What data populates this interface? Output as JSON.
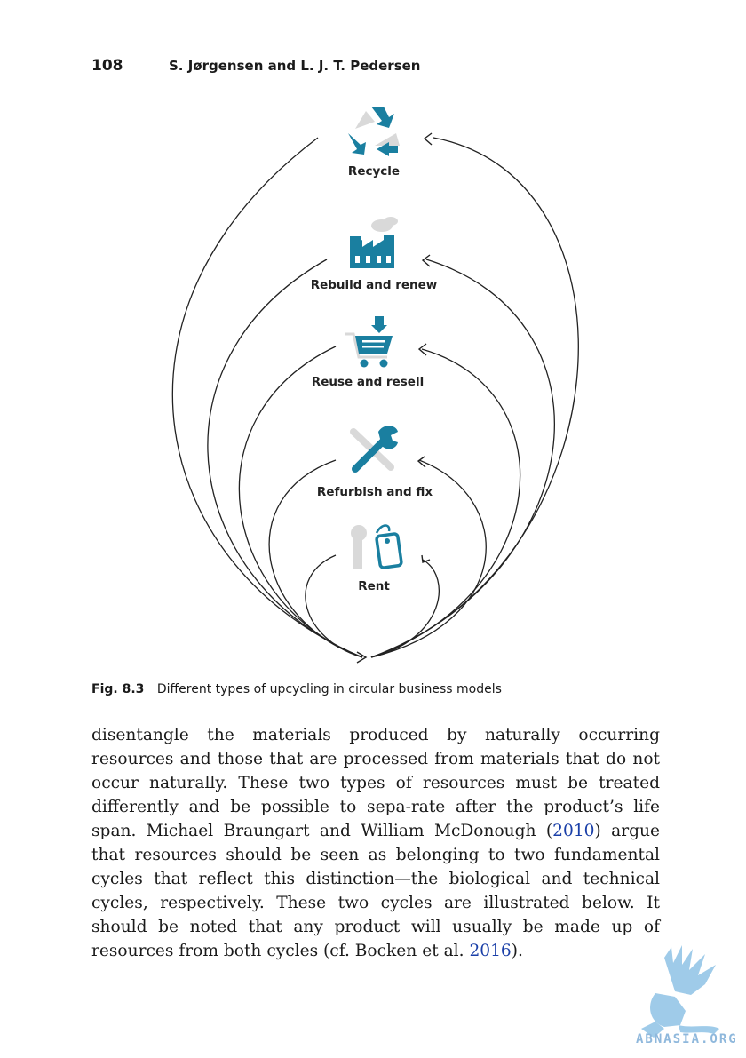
{
  "header": {
    "page_number": "108",
    "authors": "S. Jørgensen and L. J. T. Pedersen"
  },
  "figure": {
    "labels": {
      "recycle": "Recycle",
      "rebuild": "Rebuild and renew",
      "reuse": "Reuse and resell",
      "refurbish": "Refurbish and fix",
      "rent": "Rent"
    },
    "icons": {
      "recycle": "recycle-arrows-icon",
      "rebuild": "factory-icon",
      "reuse": "shopping-cart-icon",
      "refurbish": "wrench-screwdriver-icon",
      "rent": "key-tag-icon"
    },
    "accent_color": "#1a7fa0",
    "muted_color": "#d9d9d9"
  },
  "caption": {
    "number": "Fig. 8.3",
    "text": "Different types of upcycling in circular business models"
  },
  "body": {
    "p1": "disentangle the materials produced by naturally occurring resources and those that are processed from materials that do not occur naturally. These two types of resources must be treated differently and be possible to sepa-rate after the product’s life span. Michael Braungart and William McDonough (",
    "cite1": "2010",
    "p2": ") argue that resources should be seen as belonging to two fundamental cycles that reflect this distinction—the biological and technical cycles, respectively. These two cycles are illustrated below. It should be noted that any product will usually be made up of resources from both cycles (cf. Bocken et al. ",
    "cite2": "2016",
    "p3": ")."
  },
  "watermark": {
    "text": "ABNASIA.ORG"
  }
}
